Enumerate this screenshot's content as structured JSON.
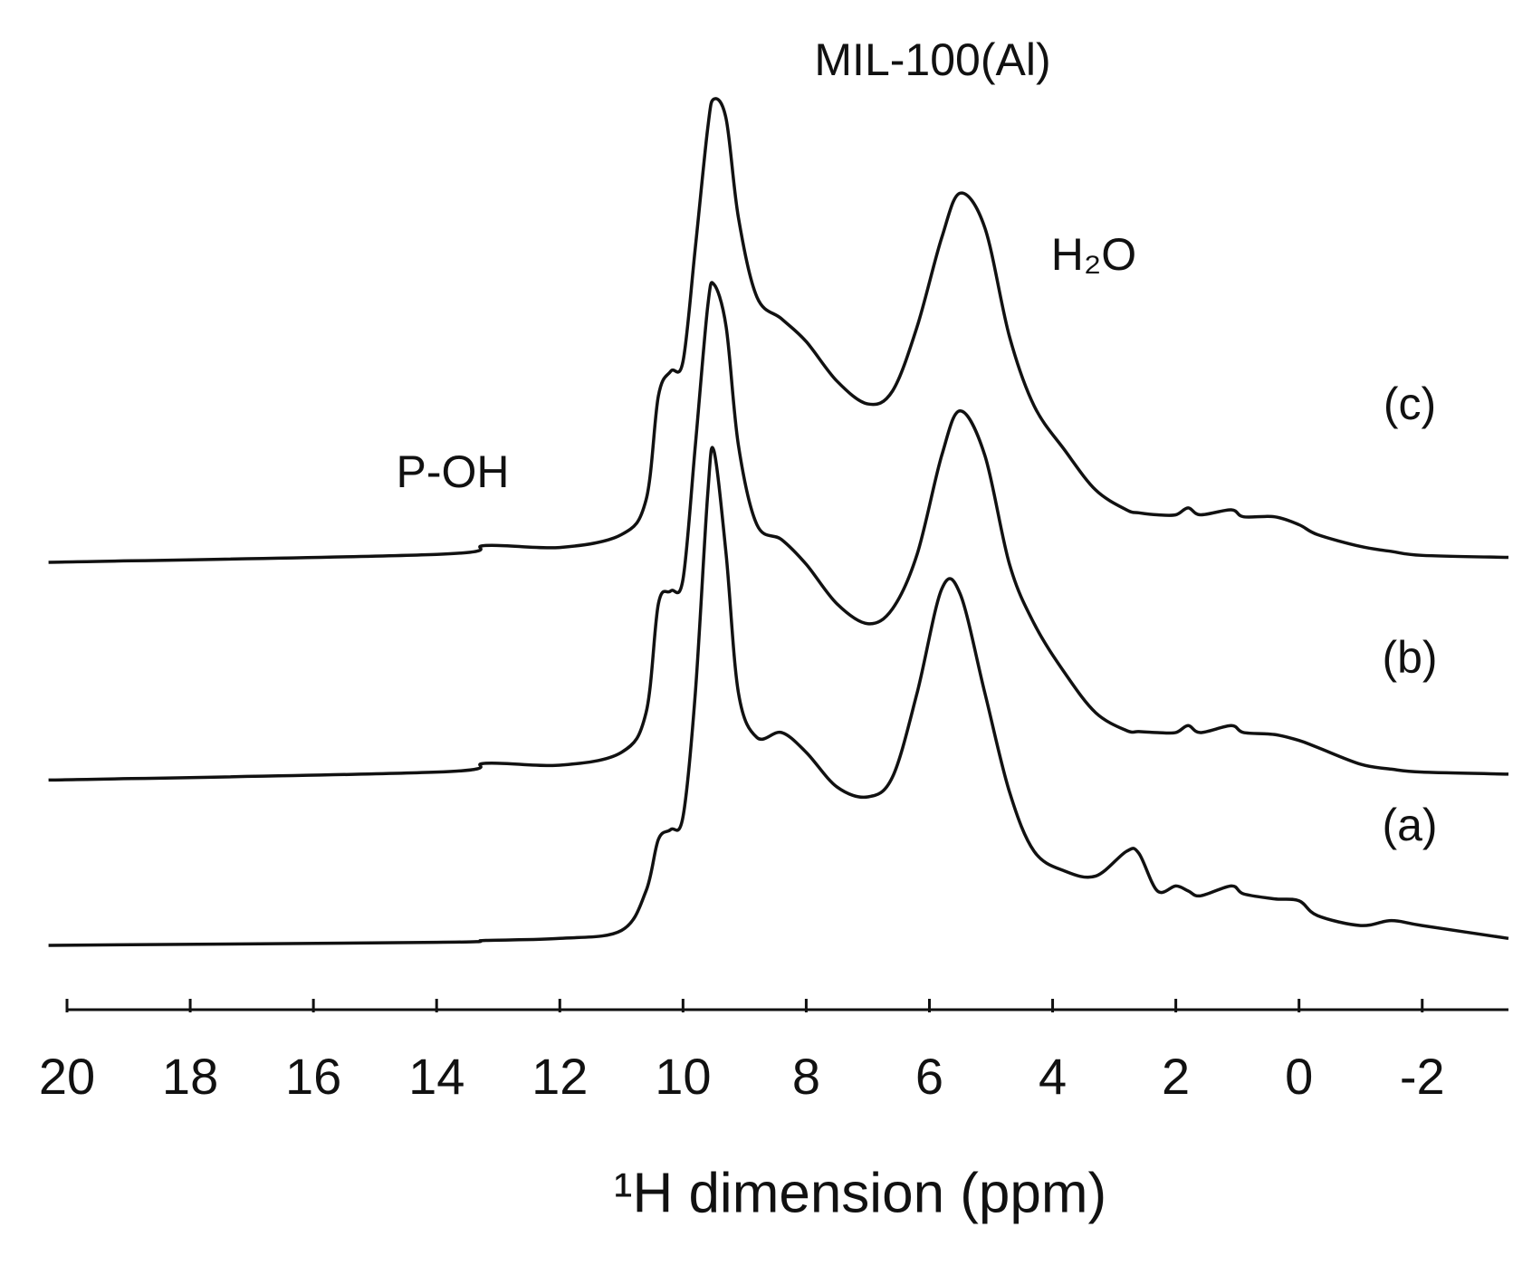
{
  "chart_data": {
    "type": "line",
    "x_label": "¹H dimension (ppm)",
    "annotations": [
      "MIL-100(Al)",
      "H₂O",
      "P-OH"
    ],
    "x": [
      20.3,
      14,
      13.2,
      12,
      11,
      10.6,
      10.4,
      10.2,
      10,
      9.8,
      9.6,
      9.5,
      9.3,
      9.1,
      8.8,
      8.4,
      8,
      7.5,
      7,
      6.6,
      6.2,
      5.8,
      5.5,
      5.1,
      4.7,
      4.3,
      3.8,
      3.3,
      2.8,
      2.6,
      2.3,
      2,
      1.8,
      1.6,
      1.1,
      0.9,
      0.4,
      0,
      -0.3,
      -1,
      -1.5,
      -2,
      -3.4
    ],
    "xlim": [
      20.3,
      -3.4
    ],
    "xticks": [
      20,
      18,
      16,
      14,
      12,
      10,
      8,
      6,
      4,
      2,
      0,
      -2
    ],
    "ylim": [
      0,
      100
    ],
    "series": [
      {
        "name": "(a)",
        "color": "#111111",
        "values": [
          6.5,
          6.8,
          7,
          7.2,
          8,
          12,
          17.2,
          18.2,
          19.5,
          32,
          52,
          56.5,
          46,
          32,
          27.5,
          28,
          26,
          22.5,
          21.5,
          23.5,
          32,
          42.5,
          42,
          32,
          22,
          16,
          14,
          13.5,
          16,
          15.8,
          12,
          12.5,
          12,
          11.5,
          12.5,
          11.7,
          11.2,
          11,
          9.5,
          8.5,
          9,
          8.5,
          7.2
        ]
      },
      {
        "name": "(b)",
        "color": "#111111",
        "values": [
          23.2,
          24,
          24.9,
          24.7,
          26,
          30,
          41,
          42.3,
          43.5,
          57,
          71,
          73.3,
          69,
          57,
          49,
          47.5,
          45,
          41,
          39,
          40.5,
          46,
          56,
          60.5,
          56,
          45,
          39,
          34,
          30,
          28.2,
          28.1,
          28,
          28,
          28.7,
          28,
          28.7,
          28,
          27.8,
          27.2,
          26.5,
          24.8,
          24.3,
          24,
          23.8
        ]
      },
      {
        "name": "(c)",
        "color": "#111111",
        "values": [
          45.2,
          46,
          46.9,
          46.7,
          48,
          51.5,
          62,
          64.5,
          65.5,
          77,
          89,
          92,
          90,
          80,
          72,
          69.8,
          67.5,
          63.5,
          61.2,
          62.5,
          69,
          78,
          82.5,
          79,
          68,
          61,
          56.5,
          52.5,
          50.5,
          50.2,
          50,
          50,
          50.7,
          50,
          50.5,
          49.8,
          49.8,
          49,
          48,
          46.8,
          46.3,
          45.9,
          45.7
        ]
      }
    ]
  }
}
